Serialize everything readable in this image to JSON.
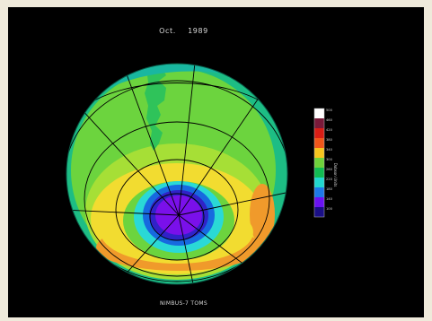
{
  "title": "Oct. 1989",
  "footer": "NIMBUS-7 TOMS",
  "colorbar": {
    "unit": "Dobson Units",
    "ticks": [
      "500",
      "460",
      "420",
      "380",
      "340",
      "300",
      "260",
      "220",
      "180",
      "140",
      "100"
    ],
    "colors": [
      "#ffffff",
      "#7a1a3a",
      "#d81e16",
      "#f0561a",
      "#f6c51e",
      "#6fd23b",
      "#12bb52",
      "#21d7cf",
      "#1d78e8",
      "#6a12f2",
      "#1a0f86"
    ]
  },
  "map_colors": {
    "ozone_hole_core": "#7a10ea",
    "ozone_hole_edge": "#3022c8",
    "collar_blue": "#1769df",
    "collar_cyan": "#2ad9d6",
    "mid_latitude_yellow": "#f2dc30",
    "peak_orange": "#f09a2b",
    "tropics_green": "#6cd43e",
    "outer_edge": "#1dbd84"
  }
}
